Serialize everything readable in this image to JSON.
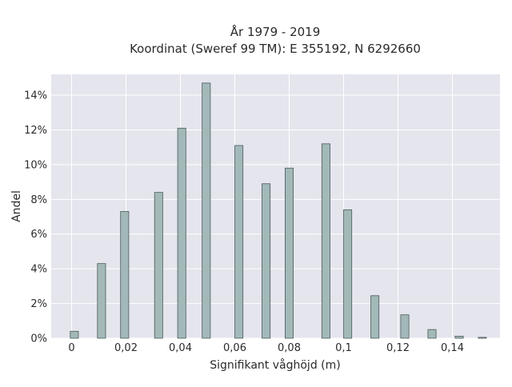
{
  "chart_data": {
    "type": "bar",
    "title_line1": "År 1979 - 2019",
    "title_line2": "Koordinat (Sweref 99 TM): E 355192, N 6292660",
    "xlabel": "Signifikant våghöjd (m)",
    "ylabel": "Andel",
    "xlim": [
      -0.0075,
      0.1575
    ],
    "ylim": [
      0,
      15.2
    ],
    "x_ticks": [
      {
        "value": 0,
        "label": "0"
      },
      {
        "value": 0.02,
        "label": "0,02"
      },
      {
        "value": 0.04,
        "label": "0,04"
      },
      {
        "value": 0.06,
        "label": "0,06"
      },
      {
        "value": 0.08,
        "label": "0,08"
      },
      {
        "value": 0.1,
        "label": "0,1"
      },
      {
        "value": 0.12,
        "label": "0,12"
      },
      {
        "value": 0.14,
        "label": "0,14"
      }
    ],
    "y_ticks": [
      {
        "value": 0,
        "label": "0%"
      },
      {
        "value": 2,
        "label": "2%"
      },
      {
        "value": 4,
        "label": "4%"
      },
      {
        "value": 6,
        "label": "6%"
      },
      {
        "value": 8,
        "label": "8%"
      },
      {
        "value": 10,
        "label": "10%"
      },
      {
        "value": 12,
        "label": "12%"
      },
      {
        "value": 14,
        "label": "14%"
      }
    ],
    "bar_width": 0.003,
    "x": [
      0.001,
      0.011,
      0.0195,
      0.032,
      0.0405,
      0.0495,
      0.0615,
      0.0715,
      0.08,
      0.0935,
      0.1015,
      0.1115,
      0.1225,
      0.1325,
      0.1425,
      0.151
    ],
    "values": [
      0.4,
      4.3,
      7.3,
      8.4,
      12.1,
      14.7,
      11.1,
      8.9,
      9.8,
      11.2,
      7.4,
      2.45,
      1.35,
      0.5,
      0.12,
      0.05
    ],
    "grid": true,
    "colors": {
      "bar_fill": "#a3b9b9",
      "bar_stroke": "#4a5a5a",
      "plot_bg": "#e5e5ee",
      "grid": "#ffffff",
      "text": "#2a2a2a"
    }
  }
}
